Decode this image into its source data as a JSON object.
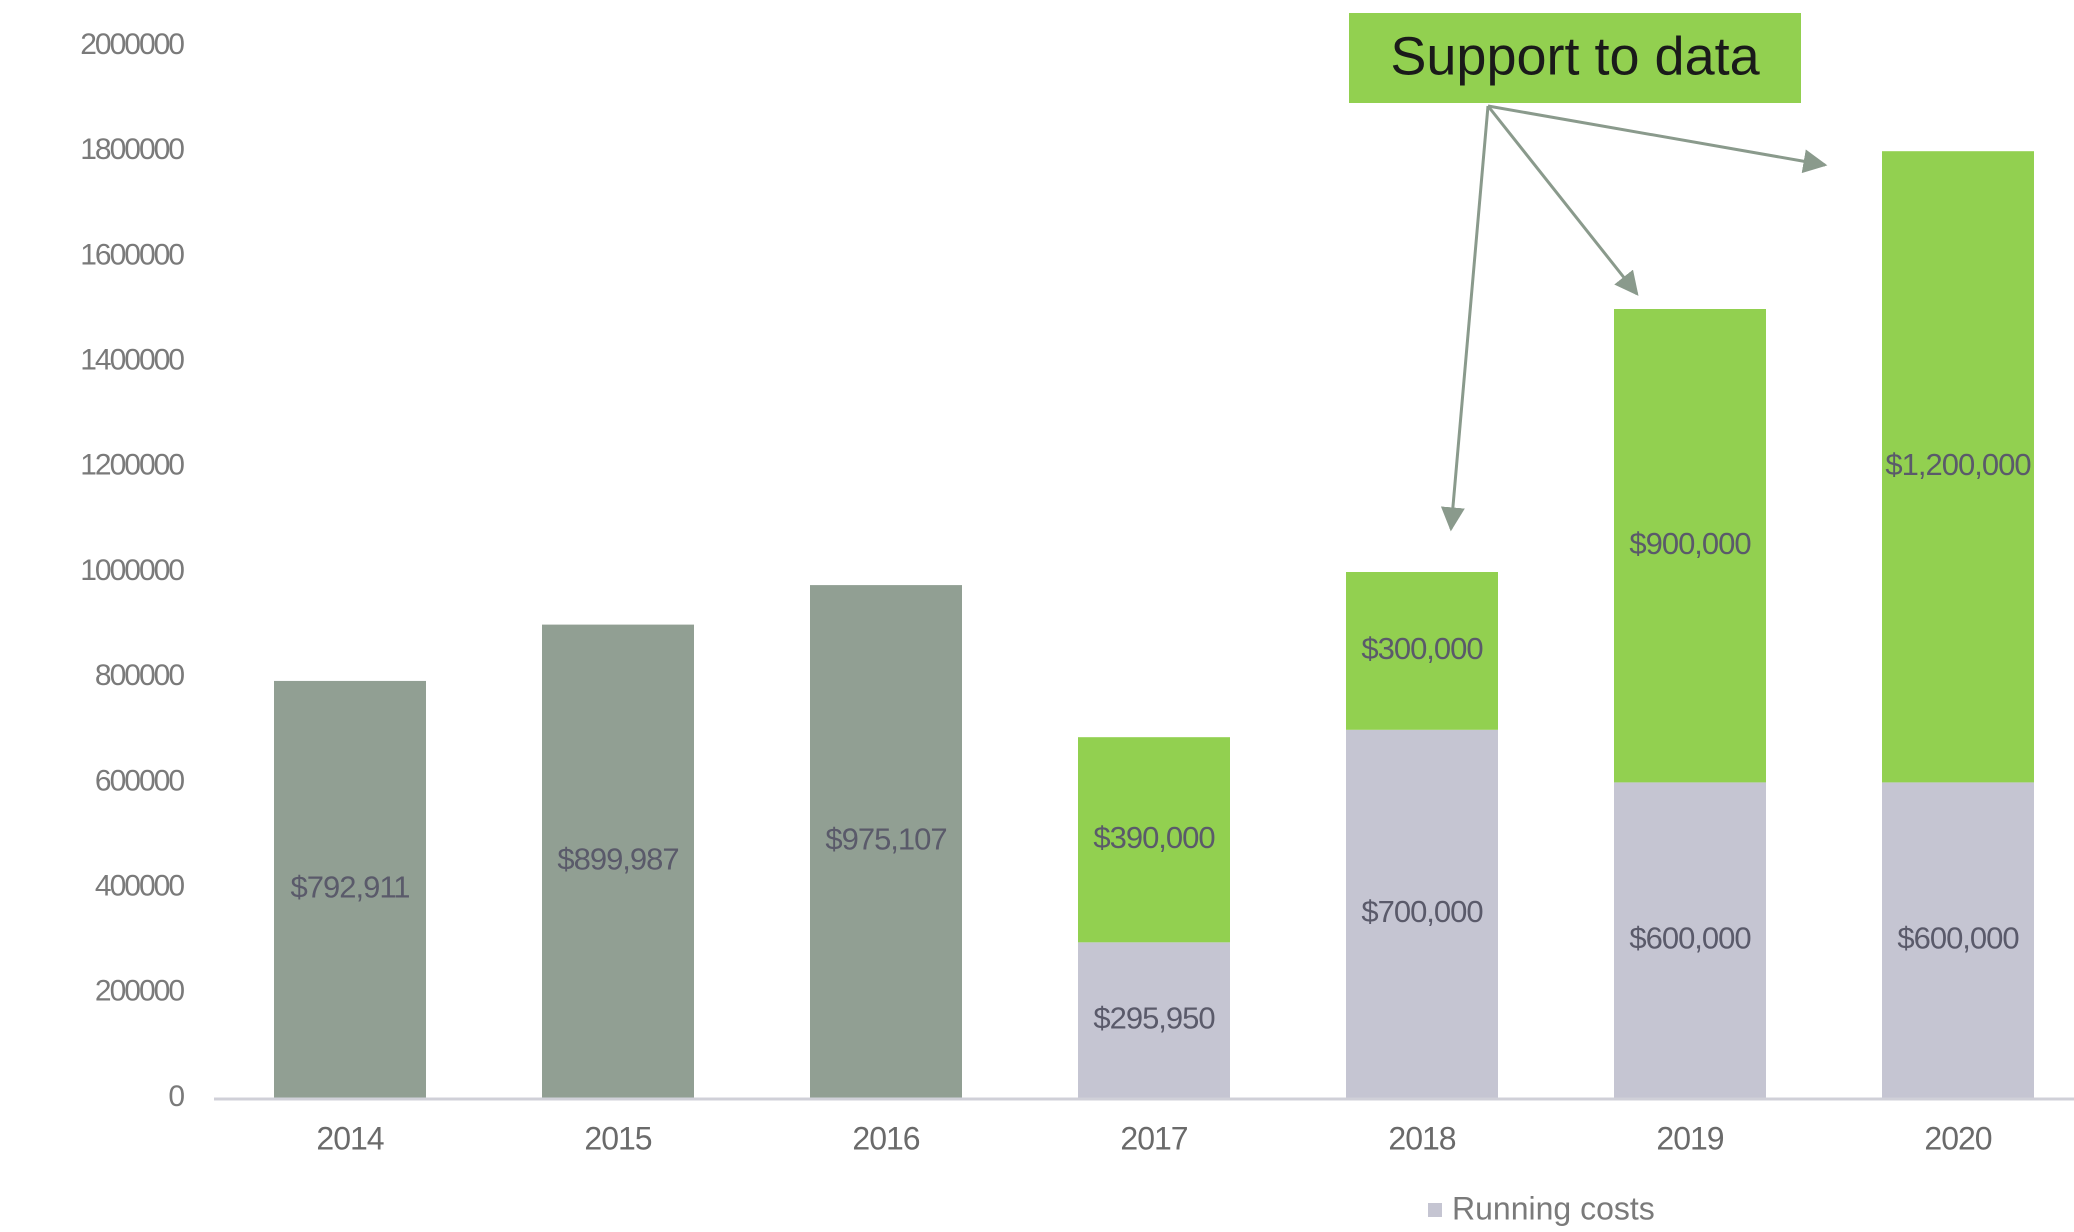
{
  "chart_data": {
    "type": "stacked_bar",
    "categories": [
      "2014",
      "2015",
      "2016",
      "2017",
      "2018",
      "2019",
      "2020"
    ],
    "series": [
      {
        "color": "#919f93",
        "values": [
          792911,
          899987,
          975107,
          null,
          null,
          null,
          null
        ],
        "value_labels": [
          "$792,911",
          "$899,987",
          "$975,107",
          null,
          null,
          null,
          null
        ]
      },
      {
        "name": "Running costs",
        "color": "#c5c5d2",
        "values": [
          null,
          null,
          null,
          295950,
          700000,
          600000,
          600000
        ],
        "value_labels": [
          null,
          null,
          null,
          "$295,950",
          "$700,000",
          "$600,000",
          "$600,000"
        ]
      },
      {
        "color": "#92d050",
        "values": [
          null,
          null,
          null,
          390000,
          300000,
          900000,
          1200000
        ],
        "value_labels": [
          null,
          null,
          null,
          "$390,000",
          "$300,000",
          "$900,000",
          "$1,200,000"
        ]
      }
    ],
    "annotation": "Support to data",
    "ylim": [
      0,
      2000000
    ],
    "yticks": [
      0,
      200000,
      400000,
      600000,
      800000,
      1000000,
      1200000,
      1400000,
      1600000,
      1800000,
      2000000
    ],
    "legend": "bottom"
  }
}
